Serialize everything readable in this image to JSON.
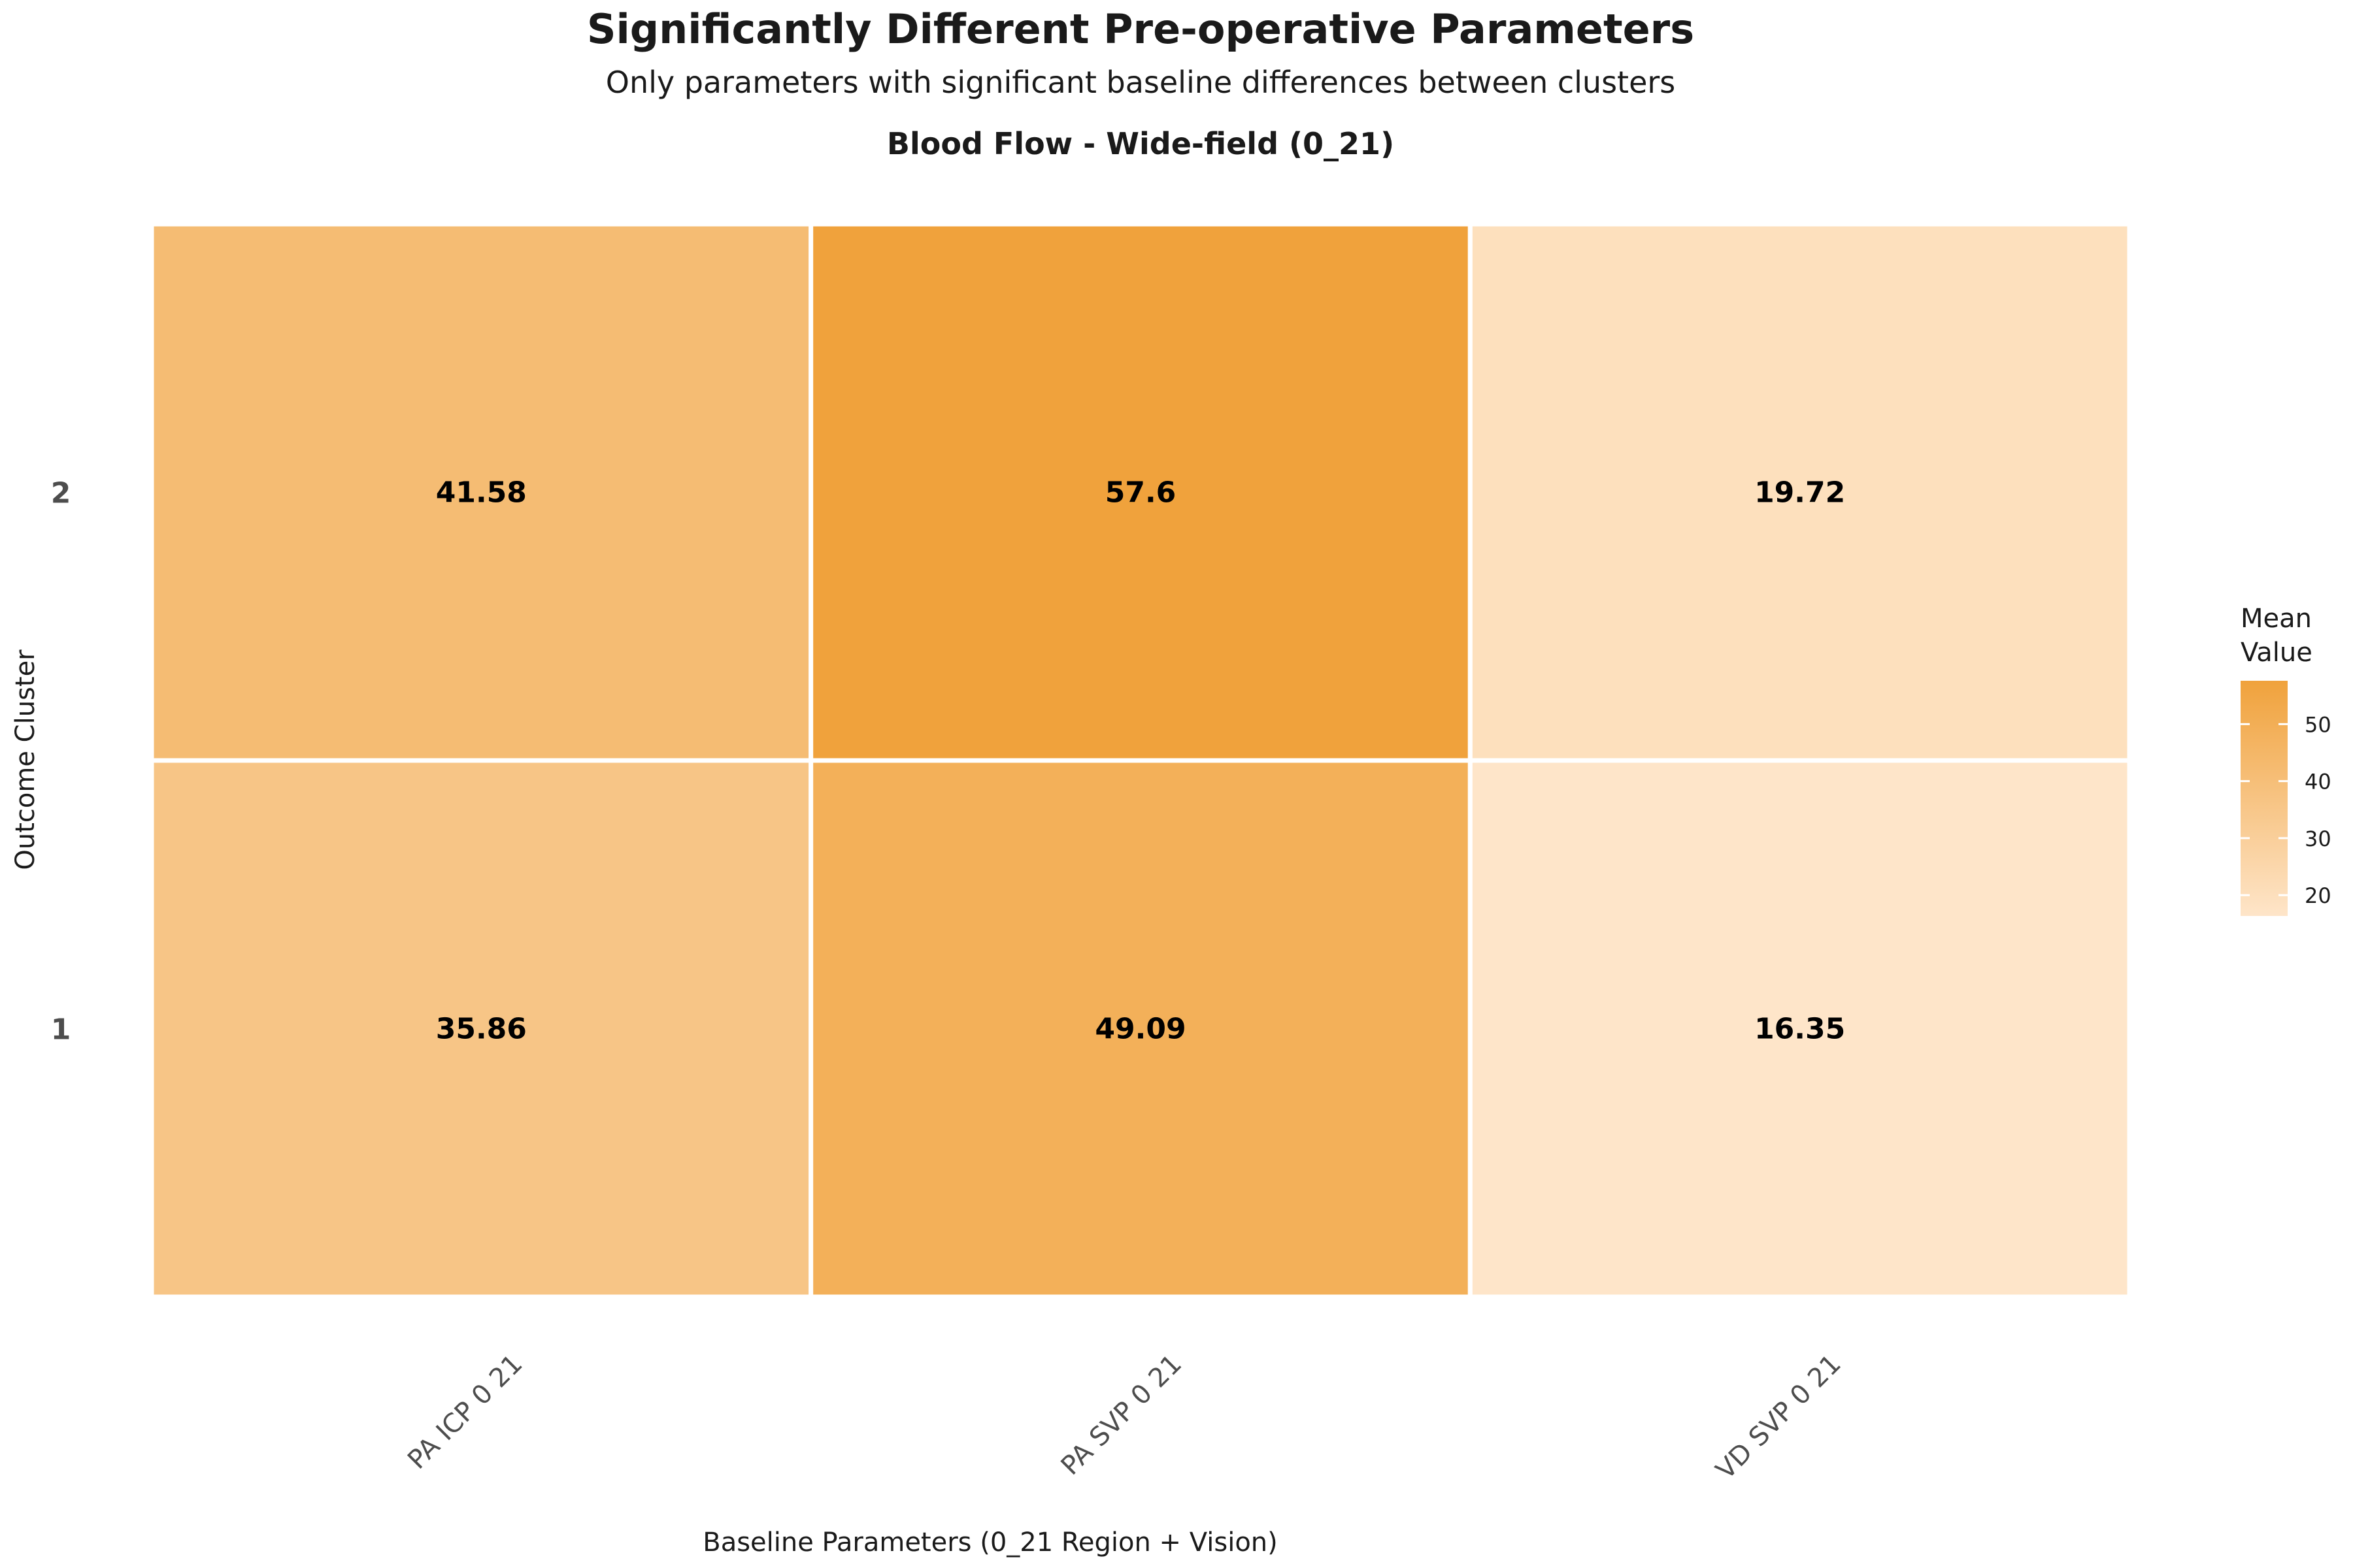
{
  "chart_data": {
    "type": "heatmap",
    "title": "Significantly Different Pre-operative Parameters",
    "subtitle": "Only parameters with significant baseline differences between clusters",
    "panel_title": "Blood Flow - Wide-field (0_21)",
    "xlabel": "Baseline Parameters (0_21 Region + Vision)",
    "ylabel": "Outcome Cluster",
    "x_categories": [
      "PA ICP 0 21",
      "PA SVP 0 21",
      "VD SVP 0 21"
    ],
    "y_categories": [
      "1",
      "2"
    ],
    "cells": [
      {
        "x": "PA ICP 0 21",
        "y": "2",
        "value": 41.58,
        "label": "41.58"
      },
      {
        "x": "PA SVP 0 21",
        "y": "2",
        "value": 57.6,
        "label": "57.6"
      },
      {
        "x": "VD SVP 0 21",
        "y": "2",
        "value": 19.72,
        "label": "19.72"
      },
      {
        "x": "PA ICP 0 21",
        "y": "1",
        "value": 35.86,
        "label": "35.86"
      },
      {
        "x": "PA SVP 0 21",
        "y": "1",
        "value": 49.09,
        "label": "49.09"
      },
      {
        "x": "VD SVP 0 21",
        "y": "1",
        "value": 16.35,
        "label": "16.35"
      }
    ],
    "legend": {
      "title": "Mean\nValue",
      "ticks": [
        20,
        30,
        40,
        50
      ],
      "range": [
        16.35,
        57.6
      ],
      "color_low": "#fee5c9",
      "color_high": "#f0a23c",
      "placement": "right"
    },
    "grid": false
  }
}
